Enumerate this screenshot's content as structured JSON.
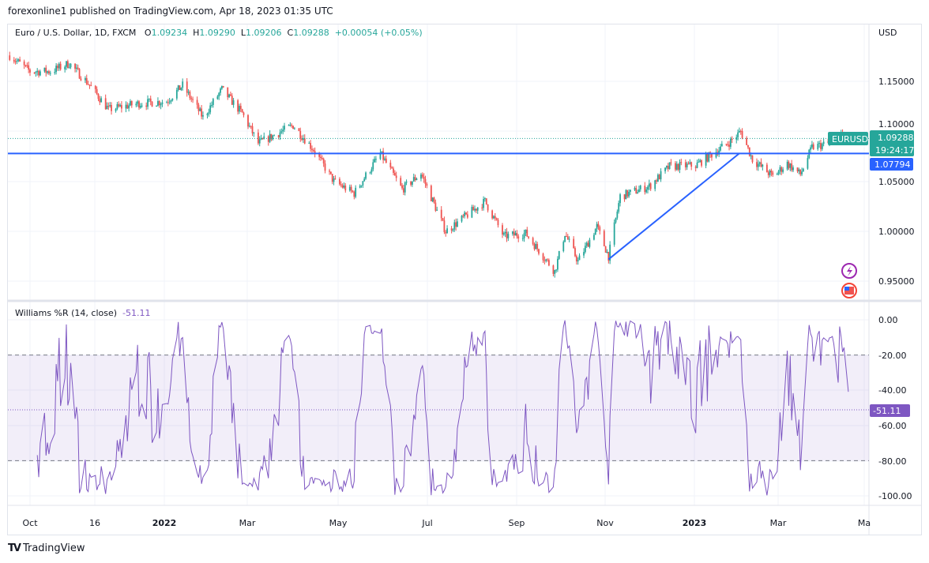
{
  "header": {
    "published": "forexonline1 published on TradingView.com, Apr 18, 2023 01:35 UTC"
  },
  "legend": {
    "symbol": "Euro / U.S. Dollar, 1D, FXCM",
    "o_label": "O",
    "o": "1.09234",
    "h_label": "H",
    "h": "1.09290",
    "l_label": "L",
    "l": "1.09206",
    "c_label": "C",
    "c": "1.09288",
    "change": "+0.00054 (+0.05%)"
  },
  "price_axis": {
    "currency": "USD",
    "ticks": [
      "1.15000",
      "1.10000",
      "1.05000",
      "1.00000",
      "0.95000"
    ],
    "last_price": "1.09288",
    "countdown": "19:24:17",
    "symbol_tag": "EURUSD",
    "hline_price": "1.07794"
  },
  "indicator": {
    "name": "Williams %R (14, close)",
    "value": "-51.11",
    "ticks": [
      "0.00",
      "-20.00",
      "-40.00",
      "-60.00",
      "-80.00",
      "-100.00"
    ]
  },
  "time_axis": [
    "Oct",
    "16",
    "2022",
    "Mar",
    "May",
    "Jul",
    "Sep",
    "Nov",
    "2023",
    "Mar",
    "Ma"
  ],
  "footer": {
    "brand": "TradingView"
  },
  "colors": {
    "up": "#26a69a",
    "down": "#ef5350",
    "line": "#2962ff",
    "wr": "#7e57c2"
  },
  "chart_data": {
    "type": "candlestick",
    "title": "Euro / U.S. Dollar, 1D, FXCM",
    "ylim": [
      0.93,
      1.19
    ],
    "price_waypoints": [
      [
        "2021-09-17",
        1.176
      ],
      [
        "2021-10-01",
        1.16
      ],
      [
        "2021-10-15",
        1.16
      ],
      [
        "2021-10-28",
        1.168
      ],
      [
        "2021-11-10",
        1.148
      ],
      [
        "2021-11-24",
        1.122
      ],
      [
        "2021-12-15",
        1.128
      ],
      [
        "2022-01-03",
        1.13
      ],
      [
        "2022-01-14",
        1.146
      ],
      [
        "2022-01-28",
        1.114
      ],
      [
        "2022-02-10",
        1.142
      ],
      [
        "2022-02-24",
        1.118
      ],
      [
        "2022-03-07",
        1.088
      ],
      [
        "2022-03-31",
        1.106
      ],
      [
        "2022-04-14",
        1.082
      ],
      [
        "2022-04-28",
        1.05
      ],
      [
        "2022-05-12",
        1.038
      ],
      [
        "2022-05-30",
        1.078
      ],
      [
        "2022-06-14",
        1.042
      ],
      [
        "2022-06-27",
        1.058
      ],
      [
        "2022-07-14",
        1.0
      ],
      [
        "2022-08-10",
        1.03
      ],
      [
        "2022-08-23",
        0.995
      ],
      [
        "2022-09-07",
        0.998
      ],
      [
        "2022-09-27",
        0.96
      ],
      [
        "2022-10-04",
        0.998
      ],
      [
        "2022-10-13",
        0.97
      ],
      [
        "2022-10-26",
        1.005
      ],
      [
        "2022-11-03",
        0.975
      ],
      [
        "2022-11-11",
        1.035
      ],
      [
        "2022-12-01",
        1.045
      ],
      [
        "2022-12-15",
        1.065
      ],
      [
        "2023-01-02",
        1.066
      ],
      [
        "2023-01-26",
        1.09
      ],
      [
        "2023-02-02",
        1.1
      ],
      [
        "2023-02-10",
        1.072
      ],
      [
        "2023-02-24",
        1.055
      ],
      [
        "2023-03-06",
        1.068
      ],
      [
        "2023-03-15",
        1.057
      ],
      [
        "2023-03-23",
        1.084
      ],
      [
        "2023-04-03",
        1.088
      ],
      [
        "2023-04-14",
        1.098
      ],
      [
        "2023-04-17",
        1.09288
      ]
    ],
    "horizontal_line": 1.07794,
    "trendline": [
      [
        "2022-11-03",
        0.972
      ],
      [
        "2023-02-01",
        1.078
      ]
    ],
    "indicator": {
      "name": "Williams %R",
      "period": 14,
      "ylim": [
        -100,
        0
      ],
      "bands": [
        -20,
        -80
      ],
      "last": -51.11
    }
  }
}
